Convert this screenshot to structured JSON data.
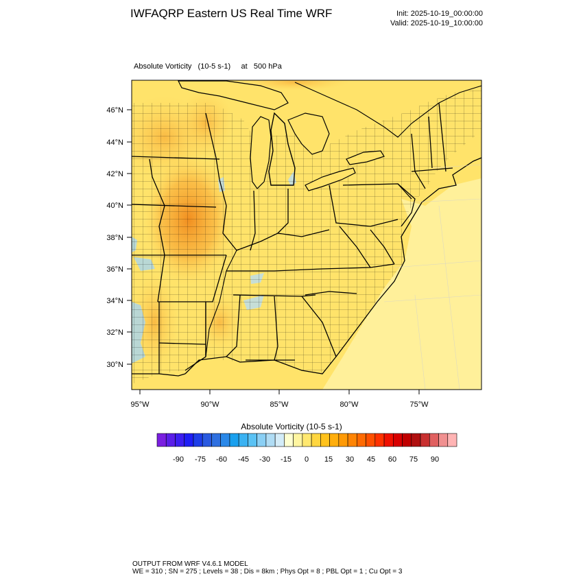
{
  "header": {
    "title": "IWFAQRP Eastern US Real Time WRF",
    "init_label": "Init: 2025-10-19_00:00:00",
    "valid_label": "Valid: 2025-10-19_10:00:00"
  },
  "field_title": "Absolute Vorticity   (10-5 s-1)     at   500 hPa",
  "map": {
    "lat_ticks": [
      "46°N",
      "44°N",
      "42°N",
      "40°N",
      "38°N",
      "36°N",
      "34°N",
      "32°N",
      "30°N"
    ],
    "lon_ticks": [
      "95°W",
      "90°W",
      "85°W",
      "80°W",
      "75°W"
    ]
  },
  "colorbar": {
    "title": "Absolute Vorticity  (10-5 s-1)",
    "labels": [
      "-90",
      "-75",
      "-60",
      "-45",
      "-30",
      "-15",
      "0",
      "15",
      "30",
      "45",
      "60",
      "75",
      "90"
    ],
    "colors": [
      "#7a1fe0",
      "#5a1ee8",
      "#3c1ef0",
      "#1e1ef5",
      "#1e3ee8",
      "#2a5ae0",
      "#2f70e0",
      "#2a88e8",
      "#1aa0ee",
      "#3ab2f2",
      "#5ac2f4",
      "#8acff4",
      "#b0dcf4",
      "#d4ecf8",
      "#ffffd0",
      "#fff5a0",
      "#ffe870",
      "#ffd640",
      "#ffc21c",
      "#ffae0c",
      "#ff9a06",
      "#ff8404",
      "#ff6a02",
      "#ff5000",
      "#ff3200",
      "#f01000",
      "#d80000",
      "#c00000",
      "#b01010",
      "#c83030",
      "#e06060",
      "#f09090",
      "#ffb4b4"
    ]
  },
  "footer": {
    "line1": "OUTPUT FROM WRF V4.6.1 MODEL",
    "line2": "WE = 310 ; SN = 275 ; Levels = 38 ; Dis = 8km ; Phys Opt = 8 ; PBL Opt = 1 ; Cu Opt = 3"
  }
}
